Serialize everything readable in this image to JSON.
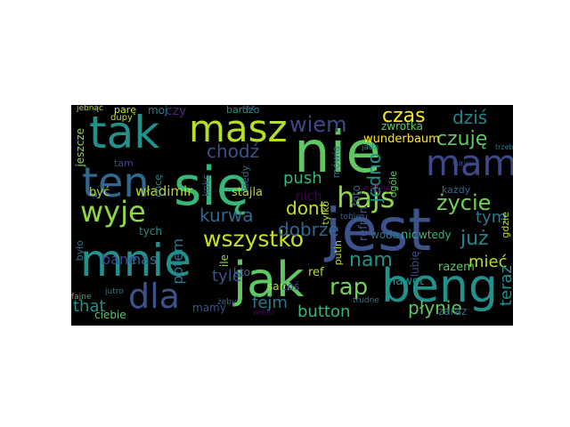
{
  "wordcloud": {
    "words": [
      {
        "text": "nie",
        "color": "#5ec962"
      },
      {
        "text": "się",
        "color": "#35b779"
      },
      {
        "text": "jest",
        "color": "#3b528b"
      },
      {
        "text": "jak",
        "color": "#5ec962"
      },
      {
        "text": "mnie",
        "color": "#21918c"
      },
      {
        "text": "tak",
        "color": "#21918c"
      },
      {
        "text": "beng",
        "color": "#21918c"
      },
      {
        "text": "mam",
        "color": "#3e4989"
      },
      {
        "text": "masz",
        "color": "#b5de2b"
      },
      {
        "text": "ten",
        "color": "#31688e"
      },
      {
        "text": "hajs",
        "color": "#8fd744"
      },
      {
        "text": "wyje",
        "color": "#8fd744"
      },
      {
        "text": "dla",
        "color": "#3b528b"
      },
      {
        "text": "wszystko",
        "color": "#c8e020"
      },
      {
        "text": "życie",
        "color": "#73d056"
      },
      {
        "text": "rap",
        "color": "#73d056"
      },
      {
        "text": "czas",
        "color": "#fde725"
      },
      {
        "text": "dziś",
        "color": "#26828e"
      },
      {
        "text": "czuję",
        "color": "#5ec962"
      },
      {
        "text": "wiem",
        "color": "#3e4989"
      },
      {
        "text": "chodź",
        "color": "#3b528b"
      },
      {
        "text": "push",
        "color": "#35b779"
      },
      {
        "text": "kurwa",
        "color": "#31688e"
      },
      {
        "text": "dont",
        "color": "#c8e020"
      },
      {
        "text": "dobrze",
        "color": "#31688e"
      },
      {
        "text": "fejm",
        "color": "#2a788e"
      },
      {
        "text": "button",
        "color": "#35b779"
      },
      {
        "text": "płynie",
        "color": "#5ec962"
      },
      {
        "text": "mieć",
        "color": "#b5de2b"
      },
      {
        "text": "już",
        "color": "#26828e"
      },
      {
        "text": "tym",
        "color": "#2a788e"
      },
      {
        "text": "nam",
        "color": "#21918c"
      },
      {
        "text": "bane",
        "color": "#3e4989"
      },
      {
        "text": "nas",
        "color": "#31688e"
      },
      {
        "text": "that",
        "color": "#21918c"
      },
      {
        "text": "tyle",
        "color": "#3b528b"
      },
      {
        "text": "potem",
        "color": "#2a788e"
      },
      {
        "text": "teraz",
        "color": "#21918c"
      },
      {
        "text": "jedno",
        "color": "#21918c"
      },
      {
        "text": "nich",
        "color": "#440154"
      },
      {
        "text": "władimir",
        "color": "#b5de2b"
      },
      {
        "text": "stajla",
        "color": "#b5de2b"
      },
      {
        "text": "wunderbaum",
        "color": "#fde725"
      },
      {
        "text": "jeszcze",
        "color": "#8fd744"
      },
      {
        "text": "być",
        "color": "#b5de2b"
      },
      {
        "text": "parę",
        "color": "#c8e020"
      },
      {
        "text": "moj",
        "color": "#2a788e"
      },
      {
        "text": "czy",
        "color": "#482878"
      },
      {
        "text": "bardzo",
        "color": "#21918c"
      },
      {
        "text": "zwrotka",
        "color": "#5ec962"
      },
      {
        "text": "jebnąć",
        "color": "#b5de2b"
      },
      {
        "text": "dupy",
        "color": "#b5de2b"
      },
      {
        "text": "ref",
        "color": "#b5de2b"
      },
      {
        "text": "refren",
        "color": "#3b528b"
      },
      {
        "text": "foto",
        "color": "#31688e"
      },
      {
        "text": "putin",
        "color": "#b5de2b"
      },
      {
        "text": "nawet",
        "color": "#21918c"
      },
      {
        "text": "razem",
        "color": "#5ec962"
      },
      {
        "text": "zaraz",
        "color": "#31688e"
      },
      {
        "text": "lubię",
        "color": "#3e4989"
      },
      {
        "text": "nic",
        "color": "#35b779"
      },
      {
        "text": "wtedy",
        "color": "#35b779"
      },
      {
        "text": "woda",
        "color": "#2a788e"
      },
      {
        "text": "jesteś",
        "color": "#440154"
      },
      {
        "text": "tylko",
        "color": "#b5de2b"
      },
      {
        "text": "sam",
        "color": "#b5de2b"
      },
      {
        "text": "coś",
        "color": "#3e4989"
      },
      {
        "text": "kto",
        "color": "#31688e"
      },
      {
        "text": "ile",
        "color": "#8fd744"
      },
      {
        "text": "ciebie",
        "color": "#5ec962"
      },
      {
        "text": "tych",
        "color": "#21918c"
      },
      {
        "text": "mamy",
        "color": "#3b528b"
      },
      {
        "text": "koks",
        "color": "#3b528b"
      },
      {
        "text": "tam",
        "color": "#3e4989"
      },
      {
        "text": "chcę",
        "color": "#26828e"
      },
      {
        "text": "gdzie",
        "color": "#b5de2b"
      },
      {
        "text": "ogóle",
        "color": "#5ec962"
      },
      {
        "text": "mówią",
        "color": "#2a788e"
      },
      {
        "text": "każdy",
        "color": "#31688e"
      },
      {
        "text": "było",
        "color": "#2a788e"
      },
      {
        "text": "kiedy",
        "color": "#31688e"
      },
      {
        "text": "jutro",
        "color": "#2a788e"
      },
      {
        "text": "raz",
        "color": "#31688e"
      },
      {
        "text": "tobie",
        "color": "#31688e"
      },
      {
        "text": "trudne",
        "color": "#2a788e"
      },
      {
        "text": "fajne",
        "color": "#35b779"
      },
      {
        "text": "jadą",
        "color": "#21918c"
      },
      {
        "text": "wiesz",
        "color": "#440154"
      },
      {
        "text": "żeby",
        "color": "#31688e"
      },
      {
        "text": "kurwy",
        "color": "#3e4989"
      },
      {
        "text": "trzeba",
        "color": "#2a788e"
      }
    ]
  }
}
